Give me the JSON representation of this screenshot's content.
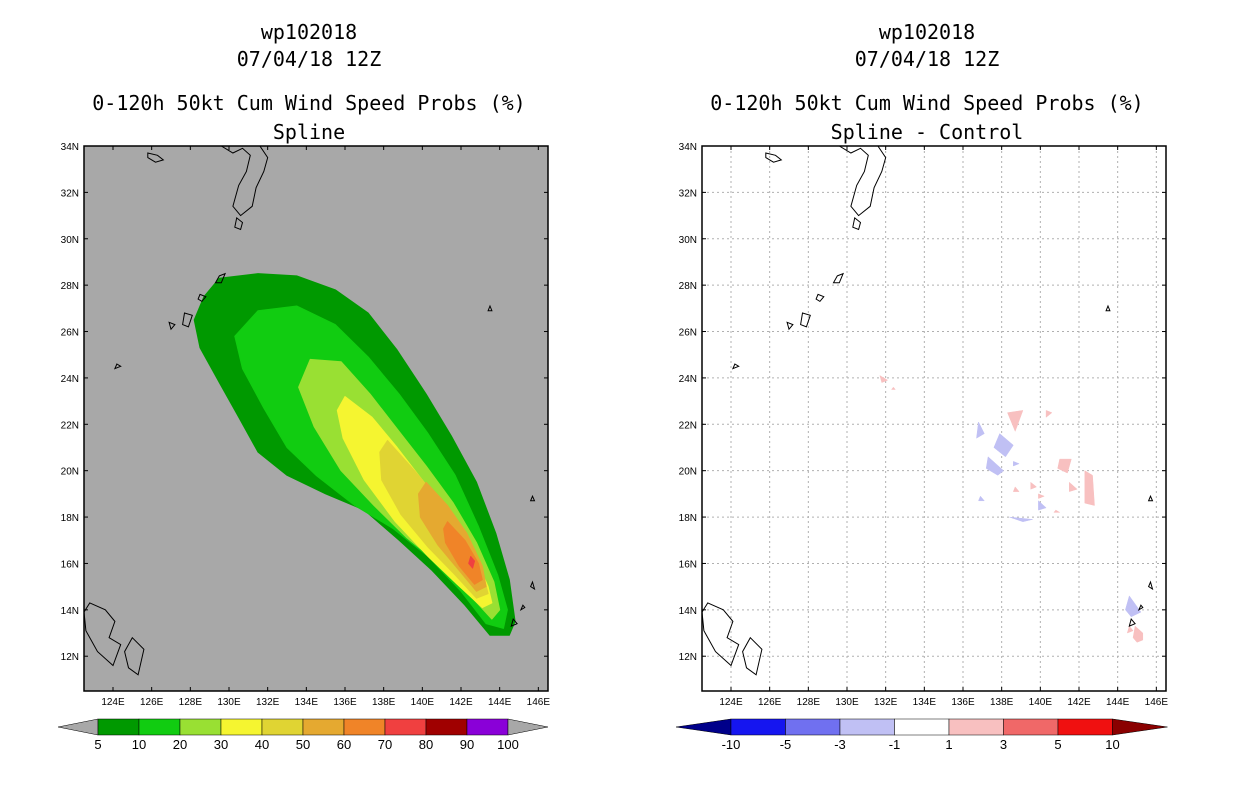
{
  "left_panel": {
    "storm_id": "wp102018",
    "datetime": "07/04/18 12Z",
    "product": "0-120h 50kt Cum Wind Speed Probs (%)",
    "subtitle": "Spline"
  },
  "right_panel": {
    "storm_id": "wp102018",
    "datetime": "07/04/18 12Z",
    "product": "0-120h 50kt Cum Wind Speed Probs (%)",
    "subtitle": "Spline - Control"
  },
  "chart_data": [
    {
      "type": "heatmap",
      "title": "0-120h 50kt Cum Wind Speed Probs (%)",
      "subtitle": "Spline",
      "xlim": [
        122.5,
        146.5
      ],
      "ylim": [
        10.5,
        34
      ],
      "x_ticks": [
        "124E",
        "126E",
        "128E",
        "130E",
        "132E",
        "134E",
        "136E",
        "138E",
        "140E",
        "142E",
        "144E",
        "146E"
      ],
      "y_ticks": [
        "12N",
        "14N",
        "16N",
        "18N",
        "20N",
        "22N",
        "24N",
        "26N",
        "28N",
        "30N",
        "32N",
        "34N"
      ],
      "grid": false,
      "background": "#a8a8a8",
      "colorbar": {
        "levels": [
          "5",
          "10",
          "20",
          "30",
          "40",
          "50",
          "60",
          "70",
          "80",
          "90",
          "100"
        ],
        "colors": [
          "#009900",
          "#11cc11",
          "#99e033",
          "#f5f530",
          "#e0d433",
          "#e5a930",
          "#f08428",
          "#f04040",
          "#a00000",
          "#8a00d8"
        ]
      },
      "contours": [
        {
          "level": 5,
          "points": [
            [
              129.5,
              28.3
            ],
            [
              131.5,
              28.5
            ],
            [
              133.5,
              28.4
            ],
            [
              135.5,
              27.8
            ],
            [
              137.2,
              26.8
            ],
            [
              138.7,
              25.2
            ],
            [
              140.2,
              23.3
            ],
            [
              141.5,
              21.5
            ],
            [
              142.8,
              19.5
            ],
            [
              143.8,
              17.3
            ],
            [
              144.5,
              15.3
            ],
            [
              144.8,
              13.5
            ],
            [
              144.5,
              12.9
            ],
            [
              143.5,
              12.9
            ],
            [
              142.2,
              14.2
            ],
            [
              140.5,
              15.7
            ],
            [
              138.8,
              17.0
            ],
            [
              137,
              18.3
            ],
            [
              135,
              19.0
            ],
            [
              133,
              19.8
            ],
            [
              131.5,
              20.8
            ],
            [
              130.5,
              22.3
            ],
            [
              129.5,
              23.8
            ],
            [
              128.5,
              25.3
            ],
            [
              128.2,
              26.5
            ],
            [
              128.7,
              27.5
            ]
          ]
        },
        {
          "level": 10,
          "points": [
            [
              131.5,
              26.9
            ],
            [
              133.5,
              27.1
            ],
            [
              135.5,
              26.3
            ],
            [
              137.2,
              24.9
            ],
            [
              138.8,
              23.3
            ],
            [
              140.3,
              21.6
            ],
            [
              141.7,
              19.8
            ],
            [
              142.9,
              17.6
            ],
            [
              143.9,
              15.5
            ],
            [
              144.4,
              14.0
            ],
            [
              144.2,
              13.2
            ],
            [
              143.3,
              13.4
            ],
            [
              142.0,
              14.8
            ],
            [
              140.3,
              16.3
            ],
            [
              138.5,
              17.5
            ],
            [
              136.5,
              18.5
            ],
            [
              134.5,
              19.8
            ],
            [
              133,
              21.0
            ],
            [
              131.8,
              22.7
            ],
            [
              130.7,
              24.4
            ],
            [
              130.3,
              25.8
            ]
          ]
        },
        {
          "level": 20,
          "points": [
            [
              134.2,
              24.8
            ],
            [
              135.8,
              24.7
            ],
            [
              137.3,
              23.3
            ],
            [
              138.7,
              21.8
            ],
            [
              140.2,
              20.2
            ],
            [
              141.6,
              18.6
            ],
            [
              142.8,
              16.9
            ],
            [
              143.7,
              15.2
            ],
            [
              144.0,
              14.0
            ],
            [
              143.6,
              13.6
            ],
            [
              142.6,
              14.5
            ],
            [
              141.0,
              15.9
            ],
            [
              139.2,
              17.1
            ],
            [
              137.5,
              18.5
            ],
            [
              135.8,
              20.0
            ],
            [
              134.4,
              21.9
            ],
            [
              133.6,
              23.6
            ]
          ]
        },
        {
          "level": 30,
          "points": [
            [
              136.0,
              23.2
            ],
            [
              137.4,
              22.3
            ],
            [
              138.7,
              21.0
            ],
            [
              140.0,
              19.6
            ],
            [
              141.3,
              18.1
            ],
            [
              142.6,
              16.5
            ],
            [
              143.4,
              15.0
            ],
            [
              143.6,
              14.3
            ],
            [
              143.1,
              14.1
            ],
            [
              141.8,
              15.1
            ],
            [
              140.3,
              16.3
            ],
            [
              138.6,
              17.8
            ],
            [
              137.0,
              19.6
            ],
            [
              135.9,
              21.4
            ],
            [
              135.6,
              22.6
            ]
          ]
        },
        {
          "level": 40,
          "points": [
            [
              138.2,
              21.3
            ],
            [
              139.6,
              20.0
            ],
            [
              140.9,
              18.7
            ],
            [
              142.1,
              17.3
            ],
            [
              143.1,
              15.7
            ],
            [
              143.4,
              14.7
            ],
            [
              142.8,
              14.5
            ],
            [
              141.7,
              15.5
            ],
            [
              140.3,
              16.7
            ],
            [
              138.9,
              18.1
            ],
            [
              137.9,
              19.6
            ],
            [
              137.8,
              20.8
            ]
          ]
        },
        {
          "level": 50,
          "points": [
            [
              140.2,
              19.5
            ],
            [
              141.3,
              18.5
            ],
            [
              142.3,
              17.3
            ],
            [
              143.1,
              15.9
            ],
            [
              143.3,
              15.0
            ],
            [
              142.8,
              14.8
            ],
            [
              141.9,
              15.7
            ],
            [
              140.8,
              16.8
            ],
            [
              139.9,
              18.0
            ],
            [
              139.8,
              19.0
            ]
          ]
        },
        {
          "level": 60,
          "points": [
            [
              141.3,
              17.8
            ],
            [
              142.2,
              17.0
            ],
            [
              142.9,
              16.0
            ],
            [
              143.1,
              15.3
            ],
            [
              142.7,
              15.1
            ],
            [
              141.9,
              15.9
            ],
            [
              141.2,
              16.9
            ],
            [
              141.1,
              17.5
            ]
          ]
        },
        {
          "level": 70,
          "points": [
            [
              142.5,
              16.3
            ],
            [
              142.7,
              16.1
            ],
            [
              142.6,
              15.8
            ],
            [
              142.4,
              16.0
            ]
          ]
        }
      ]
    },
    {
      "type": "heatmap",
      "title": "0-120h 50kt Cum Wind Speed Probs (%)",
      "subtitle": "Spline - Control",
      "xlim": [
        122.5,
        146.5
      ],
      "ylim": [
        10.5,
        34
      ],
      "x_ticks": [
        "124E",
        "126E",
        "128E",
        "130E",
        "132E",
        "134E",
        "136E",
        "138E",
        "140E",
        "142E",
        "144E",
        "146E"
      ],
      "y_ticks": [
        "12N",
        "14N",
        "16N",
        "18N",
        "20N",
        "22N",
        "24N",
        "26N",
        "28N",
        "30N",
        "32N",
        "34N"
      ],
      "grid": true,
      "background": "#ffffff",
      "colorbar": {
        "levels": [
          "-10",
          "-5",
          "-3",
          "-1",
          "1",
          "3",
          "5",
          "10"
        ],
        "colors": [
          "#00008a",
          "#1515f0",
          "#7070f0",
          "#c0c0f4",
          "#ffffff",
          "#f8c0c0",
          "#f06868",
          "#f01010",
          "#8a0000"
        ]
      },
      "patches": [
        {
          "class": "neg",
          "points": [
            [
              136.8,
              22.1
            ],
            [
              137.1,
              21.6
            ],
            [
              136.7,
              21.4
            ]
          ]
        },
        {
          "class": "neg",
          "points": [
            [
              137.9,
              21.6
            ],
            [
              138.6,
              21.1
            ],
            [
              138.2,
              20.6
            ],
            [
              137.6,
              21.0
            ]
          ]
        },
        {
          "class": "neg",
          "points": [
            [
              137.3,
              20.6
            ],
            [
              138.1,
              20.0
            ],
            [
              137.8,
              19.8
            ],
            [
              137.2,
              20.1
            ]
          ]
        },
        {
          "class": "neg",
          "points": [
            [
              138.6,
              20.4
            ],
            [
              138.9,
              20.3
            ],
            [
              138.6,
              20.2
            ]
          ]
        },
        {
          "class": "neg",
          "points": [
            [
              139.9,
              18.7
            ],
            [
              140.3,
              18.4
            ],
            [
              139.9,
              18.3
            ]
          ]
        },
        {
          "class": "neg",
          "points": [
            [
              138.4,
              18.0
            ],
            [
              139.6,
              17.9
            ],
            [
              139.1,
              17.8
            ]
          ]
        },
        {
          "class": "neg",
          "points": [
            [
              136.9,
              18.9
            ],
            [
              137.1,
              18.7
            ],
            [
              136.8,
              18.7
            ]
          ]
        },
        {
          "class": "neg",
          "points": [
            [
              144.6,
              14.6
            ],
            [
              145.2,
              13.9
            ],
            [
              144.7,
              13.7
            ],
            [
              144.4,
              14.0
            ]
          ]
        },
        {
          "class": "pos",
          "points": [
            [
              131.7,
              24.1
            ],
            [
              132.1,
              23.9
            ],
            [
              131.8,
              23.8
            ]
          ]
        },
        {
          "class": "pos",
          "points": [
            [
              132.4,
              23.6
            ],
            [
              132.5,
              23.5
            ],
            [
              132.3,
              23.5
            ]
          ]
        },
        {
          "class": "pos",
          "points": [
            [
              138.3,
              22.5
            ],
            [
              139.1,
              22.6
            ],
            [
              138.7,
              21.7
            ]
          ]
        },
        {
          "class": "pos",
          "points": [
            [
              140.3,
              22.6
            ],
            [
              140.6,
              22.5
            ],
            [
              140.3,
              22.3
            ]
          ]
        },
        {
          "class": "pos",
          "points": [
            [
              141.0,
              20.5
            ],
            [
              141.6,
              20.5
            ],
            [
              141.4,
              19.9
            ],
            [
              140.9,
              20.1
            ]
          ]
        },
        {
          "class": "pos",
          "points": [
            [
              142.3,
              20.0
            ],
            [
              142.7,
              19.8
            ],
            [
              142.8,
              18.5
            ],
            [
              142.3,
              18.6
            ]
          ]
        },
        {
          "class": "pos",
          "points": [
            [
              141.5,
              19.5
            ],
            [
              141.9,
              19.2
            ],
            [
              141.5,
              19.1
            ]
          ]
        },
        {
          "class": "pos",
          "points": [
            [
              139.5,
              19.5
            ],
            [
              139.8,
              19.3
            ],
            [
              139.5,
              19.2
            ]
          ]
        },
        {
          "class": "pos",
          "points": [
            [
              138.7,
              19.3
            ],
            [
              138.9,
              19.1
            ],
            [
              138.6,
              19.1
            ]
          ]
        },
        {
          "class": "pos",
          "points": [
            [
              139.9,
              19.0
            ],
            [
              140.2,
              18.9
            ],
            [
              139.9,
              18.8
            ]
          ]
        },
        {
          "class": "pos",
          "points": [
            [
              140.8,
              18.3
            ],
            [
              141.0,
              18.2
            ],
            [
              140.7,
              18.2
            ]
          ]
        },
        {
          "class": "pos",
          "points": [
            [
              144.9,
              13.3
            ],
            [
              145.3,
              13.0
            ],
            [
              145.3,
              12.7
            ],
            [
              145.0,
              12.6
            ],
            [
              144.8,
              12.8
            ]
          ]
        },
        {
          "class": "pos",
          "points": [
            [
              144.6,
              13.3
            ],
            [
              144.8,
              13.1
            ],
            [
              144.5,
              13.0
            ]
          ]
        }
      ]
    }
  ]
}
